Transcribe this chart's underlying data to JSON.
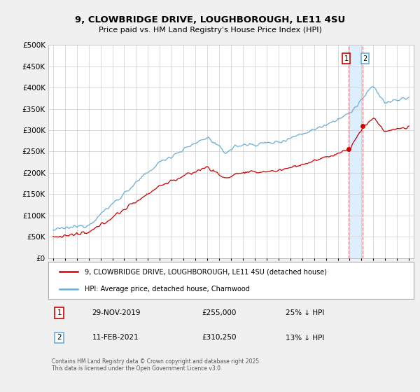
{
  "title": "9, CLOWBRIDGE DRIVE, LOUGHBOROUGH, LE11 4SU",
  "subtitle": "Price paid vs. HM Land Registry's House Price Index (HPI)",
  "ytick_values": [
    0,
    50000,
    100000,
    150000,
    200000,
    250000,
    300000,
    350000,
    400000,
    450000,
    500000
  ],
  "ylim": [
    0,
    500000
  ],
  "hpi_color": "#6baed6",
  "price_color": "#cc0000",
  "marker1_date": "29-NOV-2019",
  "marker1_price": 255000,
  "marker1_label": "25% ↓ HPI",
  "marker2_date": "11-FEB-2021",
  "marker2_price": 310250,
  "marker2_label": "13% ↓ HPI",
  "legend_label1": "9, CLOWBRIDGE DRIVE, LOUGHBOROUGH, LE11 4SU (detached house)",
  "legend_label2": "HPI: Average price, detached house, Charnwood",
  "footer": "Contains HM Land Registry data © Crown copyright and database right 2025.\nThis data is licensed under the Open Government Licence v3.0.",
  "bg_color": "#f0f0f0",
  "plot_bg": "#ffffff",
  "vline1_year": 2019.92,
  "vline2_year": 2021.12,
  "shade_color": "#ddeeff"
}
